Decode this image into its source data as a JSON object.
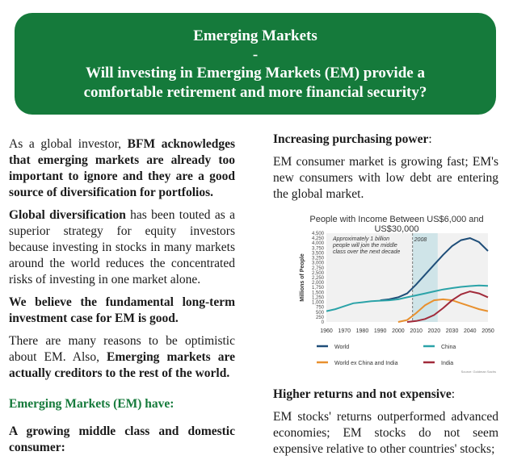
{
  "banner": {
    "title": "Emerging Markets",
    "dash": "-",
    "question_line1": "Will investing in Emerging Markets (EM) provide a",
    "question_line2": "comfortable retirement and more financial security?"
  },
  "left": {
    "p1_pre": "As a global investor, ",
    "p1_bold": "BFM acknowledges that emerging markets are already too important to ignore and they are a good source of diversification for portfolios.",
    "p2_bold": "Global diversification",
    "p2_rest": " has been touted as a superior strategy for equity investors because investing in stocks in many markets around the world reduces the concentrated risks of investing in one market alone.",
    "p3_bold": "We believe the fundamental long-term investment case for EM is good.",
    "p4_pre": "There are many reasons to be optimistic about EM. Also, ",
    "p4_bold": "Emerging markets are actually creditors to the rest of the world.",
    "green_head": "Emerging Markets (EM) have:",
    "item1": "A growing middle class and domestic consumer:"
  },
  "right": {
    "head1_bold": "Increasing purchasing power",
    "head1_rest": ":",
    "p1": "EM consumer market is growing fast; EM's new consumers with low debt are entering the global market.",
    "head2_bold": "Higher returns and not expensive",
    "head2_rest": ":",
    "p2": "EM stocks' returns outperformed advanced economies; EM stocks do not seem expensive relative to other countries' stocks;"
  },
  "chart_data": {
    "type": "line",
    "title": "People with Income Between US$6,000 and US$30,000",
    "ylabel": "Millions of People",
    "ylim": [
      0,
      4500
    ],
    "xlim": [
      1960,
      2050
    ],
    "yticks": [
      "0",
      "250",
      "500",
      "750",
      "1,000",
      "1,250",
      "1,500",
      "1,750",
      "2,000",
      "2,250",
      "2,500",
      "2,750",
      "3,000",
      "3,250",
      "3,500",
      "3,750",
      "4,000",
      "4,250",
      "4,500"
    ],
    "xticks": [
      "1960",
      "1970",
      "1980",
      "1990",
      "2000",
      "2010",
      "2020",
      "2030",
      "2040",
      "2050"
    ],
    "annotation": "Approximately 1 billion people will join the middle class over the next decade",
    "marker_label": "2008",
    "marker_year": 2008,
    "forecast_start": 2008,
    "forecast_end": 2022,
    "source": "Source: Goldman Sachs",
    "series": [
      {
        "name": "World",
        "color": "#1f4e79",
        "x": [
          1990,
          1995,
          2000,
          2005,
          2010,
          2015,
          2020,
          2025,
          2030,
          2035,
          2040,
          2045,
          2050
        ],
        "y": [
          1100,
          1150,
          1250,
          1450,
          1900,
          2400,
          2900,
          3400,
          3850,
          4150,
          4250,
          4050,
          3600
        ]
      },
      {
        "name": "China",
        "color": "#2ba3a8",
        "x": [
          1960,
          1965,
          1970,
          1975,
          1980,
          1985,
          1990,
          1995,
          2000,
          2005,
          2010,
          2015,
          2020,
          2025,
          2030,
          2035,
          2040,
          2045,
          2050
        ],
        "y": [
          550,
          650,
          800,
          950,
          1000,
          1050,
          1080,
          1100,
          1150,
          1250,
          1350,
          1450,
          1550,
          1650,
          1720,
          1780,
          1820,
          1850,
          1830
        ]
      },
      {
        "name": "World ex China and India",
        "color": "#e8902e",
        "x": [
          2000,
          2005,
          2010,
          2015,
          2020,
          2025,
          2030,
          2035,
          2040,
          2045,
          2050
        ],
        "y": [
          0,
          100,
          450,
          850,
          1100,
          1150,
          1100,
          950,
          800,
          650,
          550
        ]
      },
      {
        "name": "India",
        "color": "#a12a3a",
        "x": [
          2005,
          2010,
          2015,
          2020,
          2025,
          2030,
          2035,
          2040,
          2045,
          2050
        ],
        "y": [
          0,
          50,
          150,
          350,
          700,
          1100,
          1400,
          1550,
          1450,
          1250
        ]
      }
    ]
  }
}
